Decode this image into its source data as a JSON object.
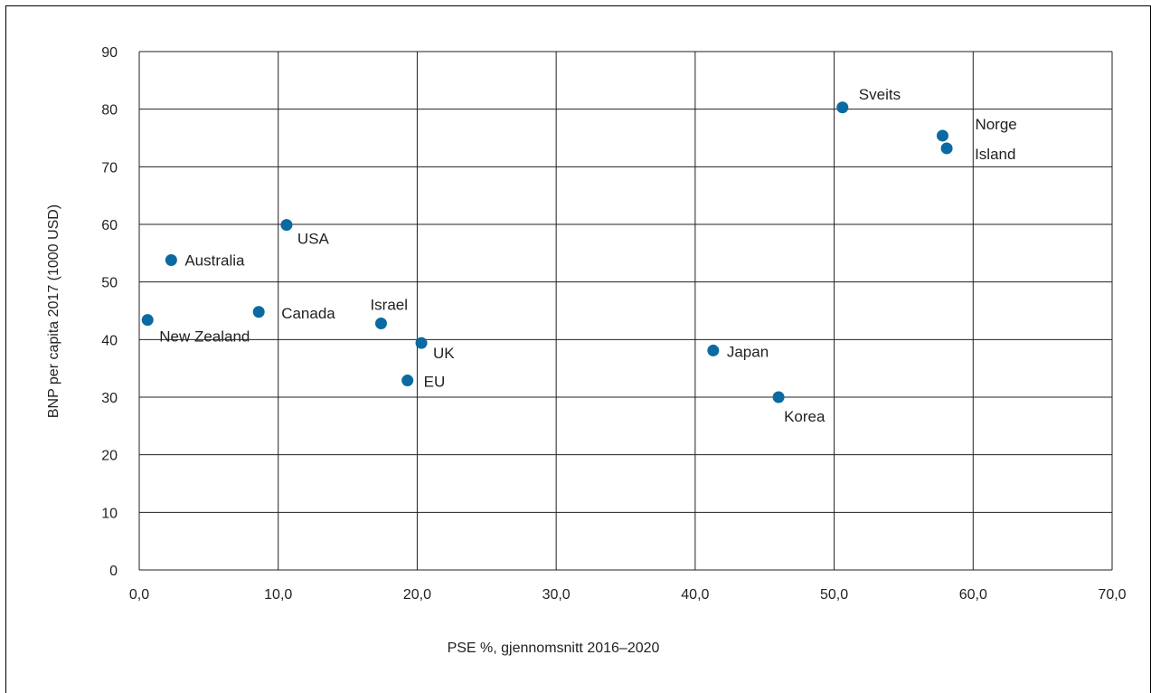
{
  "chart_data": {
    "type": "scatter",
    "title": "",
    "xlabel": "PSE %, gjennomsnitt 2016–2020",
    "ylabel": "BNP per capita 2017 (1000 USD)",
    "xlim": [
      0,
      70
    ],
    "ylim": [
      0,
      90
    ],
    "x_ticks": [
      "0,0",
      "10,0",
      "20,0",
      "30,0",
      "40,0",
      "50,0",
      "60,0",
      "70,0"
    ],
    "y_ticks": [
      "0",
      "10",
      "20",
      "30",
      "40",
      "50",
      "60",
      "70",
      "80",
      "90"
    ],
    "grid": true,
    "marker_color": "#0a6aa1",
    "points": [
      {
        "label": "Sveits",
        "x": 50.6,
        "y": 80.3
      },
      {
        "label": "Norge",
        "x": 57.8,
        "y": 75.4
      },
      {
        "label": "Island",
        "x": 58.1,
        "y": 73.2
      },
      {
        "label": "USA",
        "x": 10.6,
        "y": 59.9
      },
      {
        "label": "Australia",
        "x": 2.3,
        "y": 53.8
      },
      {
        "label": "Canada",
        "x": 8.6,
        "y": 44.8
      },
      {
        "label": "New Zealand",
        "x": 0.6,
        "y": 43.4
      },
      {
        "label": "Israel",
        "x": 17.4,
        "y": 42.8
      },
      {
        "label": "UK",
        "x": 20.3,
        "y": 39.4
      },
      {
        "label": "EU",
        "x": 19.3,
        "y": 32.9
      },
      {
        "label": "Japan",
        "x": 41.3,
        "y": 38.1
      },
      {
        "label": "Korea",
        "x": 46.0,
        "y": 30.0
      }
    ]
  }
}
